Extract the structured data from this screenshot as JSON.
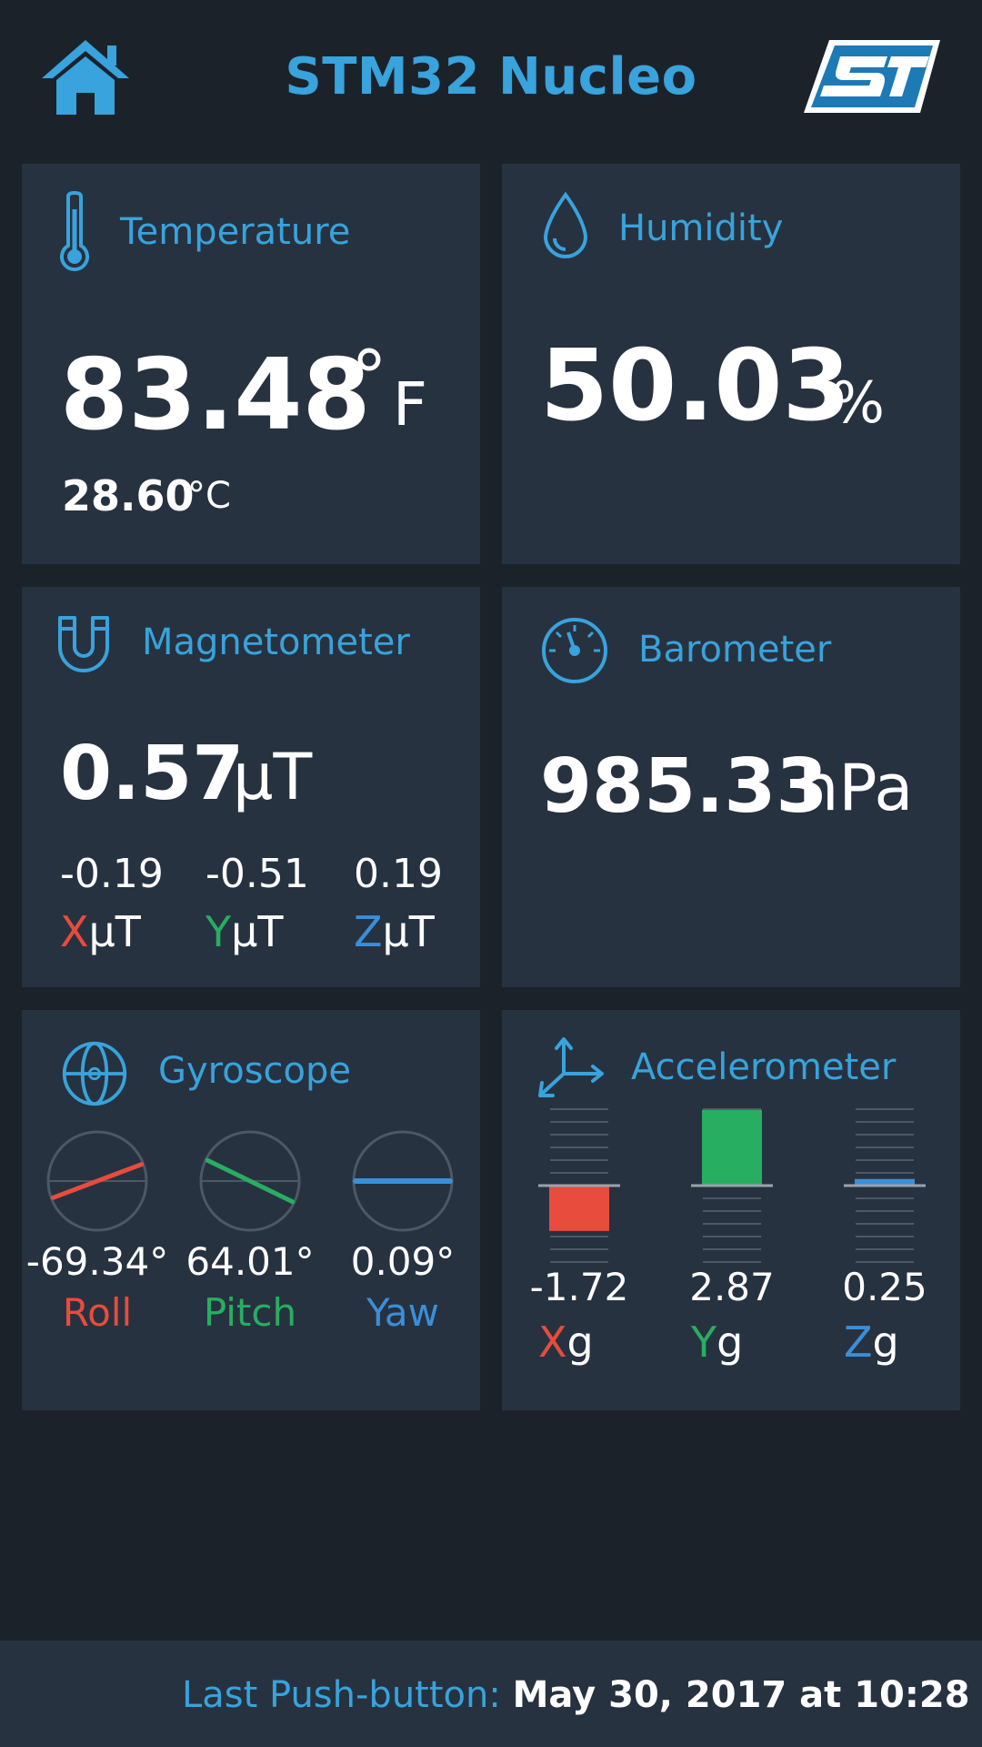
{
  "header": {
    "title": "STM32 Nucleo",
    "home_icon": "home-icon",
    "logo": "st-logo"
  },
  "colors": {
    "accent": "#38a3dc",
    "card": "#273240",
    "background": "#1c222a",
    "x_axis": "#e74c3c",
    "y_axis": "#27ae60",
    "z_axis": "#3a8fd9"
  },
  "temperature": {
    "title": "Temperature",
    "icon": "thermometer-icon",
    "value_f": "83.48",
    "unit_f_deg": "°",
    "unit_f": "F",
    "value_c": "28.60",
    "unit_c": "°C"
  },
  "humidity": {
    "title": "Humidity",
    "icon": "droplet-icon",
    "value": "50.03",
    "unit": "%"
  },
  "magnetometer": {
    "title": "Magnetometer",
    "icon": "magnet-icon",
    "value": "0.57",
    "unit": "µT",
    "axes": [
      {
        "value": "-0.19",
        "axis": "X",
        "unit": "µT"
      },
      {
        "value": "-0.51",
        "axis": "Y",
        "unit": "µT"
      },
      {
        "value": "0.19",
        "axis": "Z",
        "unit": "µT"
      }
    ]
  },
  "barometer": {
    "title": "Barometer",
    "icon": "gauge-icon",
    "value": "985.33",
    "unit": "hPa"
  },
  "gyroscope": {
    "title": "Gyroscope",
    "icon": "gyroscope-icon",
    "axes": [
      {
        "value": "-69.34°",
        "label": "Roll",
        "angle": -69.34
      },
      {
        "value": "64.01°",
        "label": "Pitch",
        "angle": 64.01
      },
      {
        "value": "0.09°",
        "label": "Yaw",
        "angle": 0.09
      }
    ]
  },
  "accelerometer": {
    "title": "Accelerometer",
    "icon": "axes-icon",
    "axes": [
      {
        "value": "-1.72",
        "axis": "X",
        "unit": "g",
        "g": -1.72
      },
      {
        "value": "2.87",
        "axis": "Y",
        "unit": "g",
        "g": 2.87
      },
      {
        "value": "0.25",
        "axis": "Z",
        "unit": "g",
        "g": 0.25
      }
    ]
  },
  "footer": {
    "label": "Last Push-button:",
    "value": "May 30, 2017 at 10:28"
  }
}
